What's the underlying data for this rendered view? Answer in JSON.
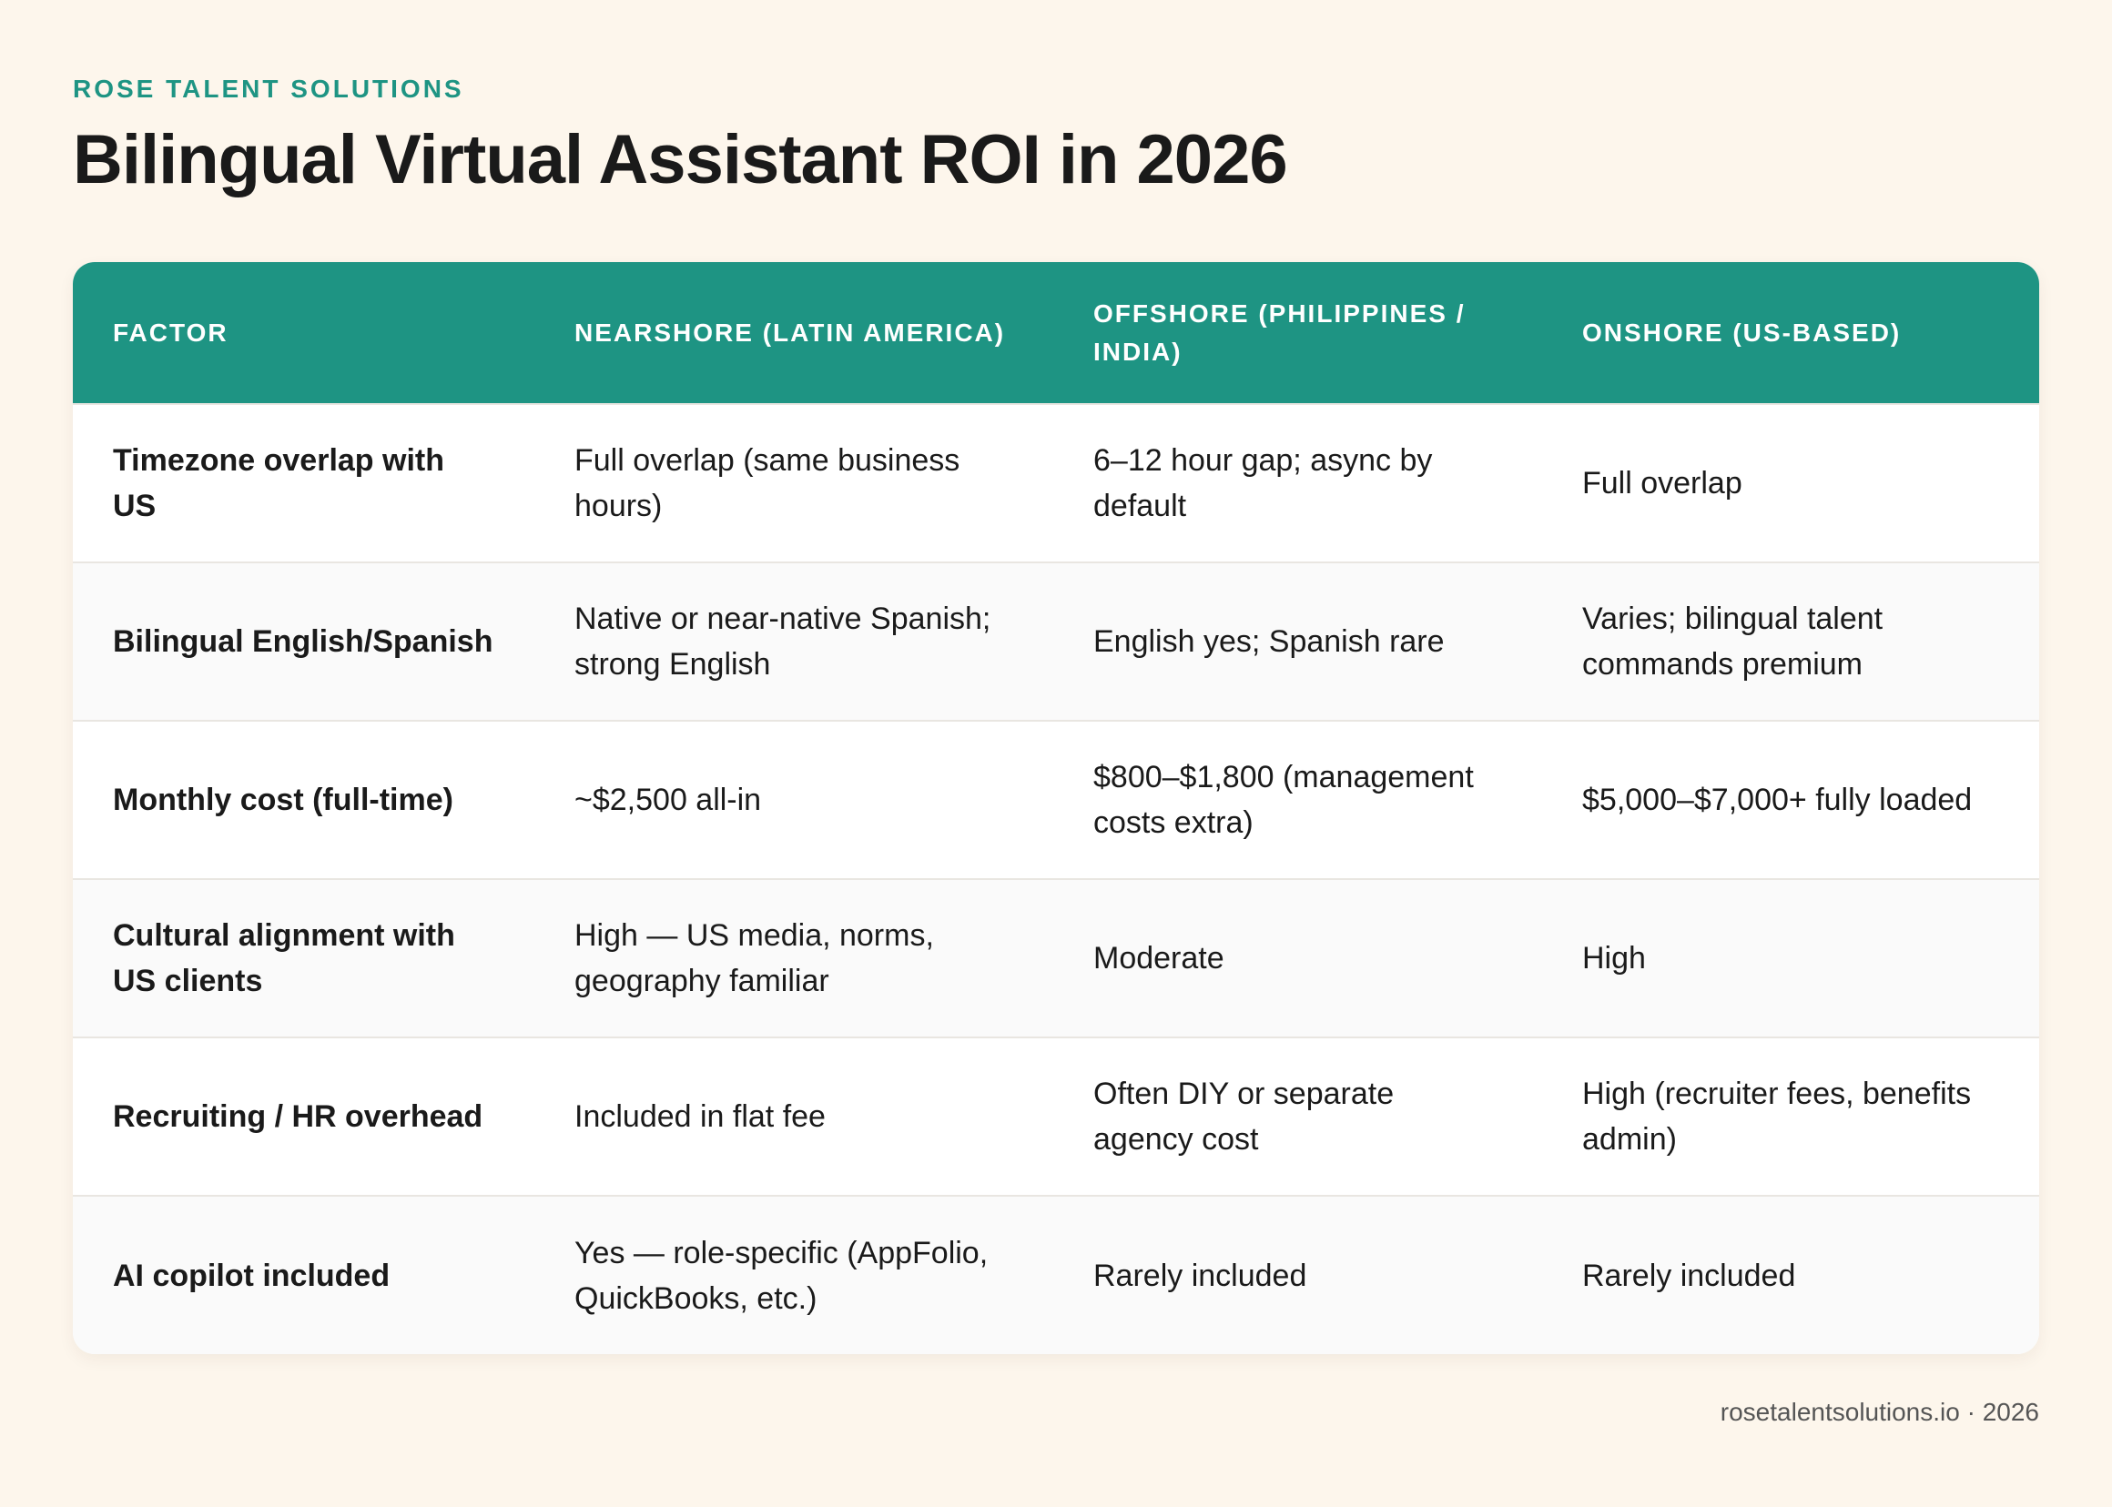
{
  "brand": "ROSE TALENT SOLUTIONS",
  "title": "Bilingual Virtual Assistant ROI in 2026",
  "table": {
    "headers": [
      "FACTOR",
      "NEARSHORE (LATIN AMERICA)",
      "OFFSHORE (PHILIPPINES / INDIA)",
      "ONSHORE (US-BASED)"
    ],
    "rows": [
      [
        "Timezone overlap with US",
        "Full overlap (same business hours)",
        "6–12 hour gap; async by default",
        "Full overlap"
      ],
      [
        "Bilingual English/Spanish",
        "Native or near-native Spanish; strong English",
        "English yes; Spanish rare",
        "Varies; bilingual talent commands premium"
      ],
      [
        "Monthly cost (full-time)",
        "~$2,500 all-in",
        "$800–$1,800 (management costs extra)",
        "$5,000–$7,000+ fully loaded"
      ],
      [
        "Cultural alignment with US clients",
        "High — US media, norms, geography familiar",
        "Moderate",
        "High"
      ],
      [
        "Recruiting / HR overhead",
        "Included in flat fee",
        "Often DIY or separate agency cost",
        "High (recruiter fees, benefits admin)"
      ],
      [
        "AI copilot included",
        "Yes — role-specific (AppFolio, QuickBooks, etc.)",
        "Rarely included",
        "Rarely included"
      ]
    ]
  },
  "footer": "rosetalentsolutions.io · 2026",
  "colors": {
    "accent": "#1e9483",
    "background": "#fdf6ec",
    "text": "#1a1a1a"
  }
}
